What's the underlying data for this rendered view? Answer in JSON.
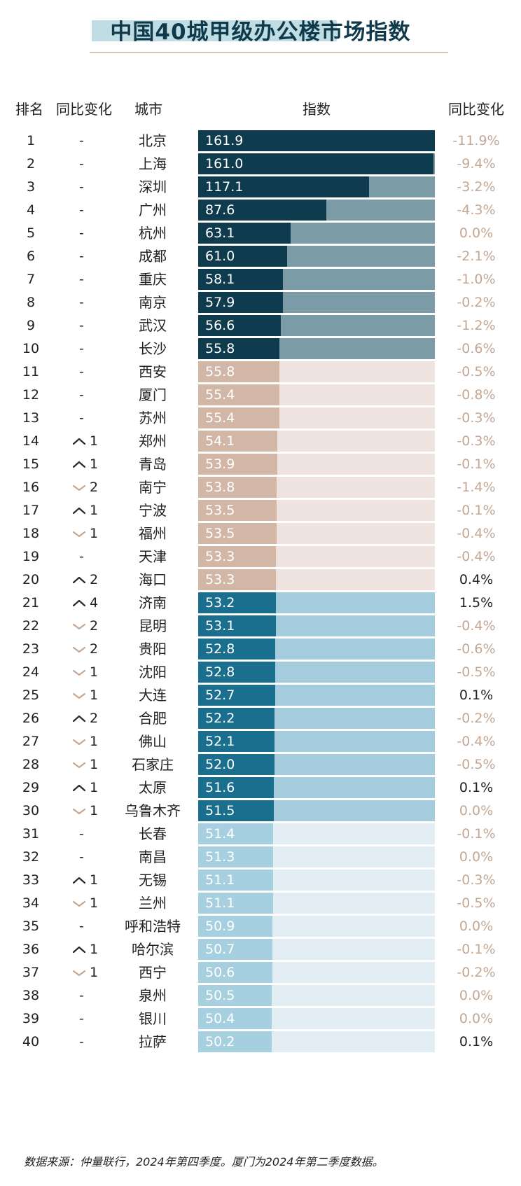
{
  "title": "中国40城甲级办公楼市场指数",
  "headers": {
    "rank": "排名",
    "change": "同比变化",
    "city": "城市",
    "index": "指数",
    "yoy": "同比变化"
  },
  "footer": "数据来源：仲量联行，2024年第四季度。厦门为2024年第二季度数据。",
  "colors": {
    "tier1_bar": "#0f3b4f",
    "tier1_track": "#7b9ba7",
    "tier2_bar": "#d2b6a6",
    "tier2_track": "#efe3df",
    "tier3_bar": "#1a6f8e",
    "tier3_track": "#a4ccdd",
    "tier4_bar": "#a6cfdf",
    "tier4_track": "#e2eef3",
    "yoy_negative": "#c4a793",
    "yoy_zero": "#c4a793",
    "yoy_positive": "#222222",
    "arrow_up": "#1f2a33",
    "arrow_down": "#c4a793"
  },
  "chart_data": {
    "type": "bar",
    "xlim": [
      0,
      161.9
    ],
    "rows": [
      {
        "rank": "1",
        "change_dir": "none",
        "change_num": "",
        "city": "北京",
        "value": 161.9,
        "value_label": "161.9",
        "yoy": "-11.9%",
        "tier": 1
      },
      {
        "rank": "2",
        "change_dir": "none",
        "change_num": "",
        "city": "上海",
        "value": 161.0,
        "value_label": "161.0",
        "yoy": "-9.4%",
        "tier": 1
      },
      {
        "rank": "3",
        "change_dir": "none",
        "change_num": "",
        "city": "深圳",
        "value": 117.1,
        "value_label": "117.1",
        "yoy": "-3.2%",
        "tier": 1
      },
      {
        "rank": "4",
        "change_dir": "none",
        "change_num": "",
        "city": "广州",
        "value": 87.6,
        "value_label": "87.6",
        "yoy": "-4.3%",
        "tier": 1
      },
      {
        "rank": "5",
        "change_dir": "none",
        "change_num": "",
        "city": "杭州",
        "value": 63.1,
        "value_label": "63.1",
        "yoy": "0.0%",
        "tier": 1
      },
      {
        "rank": "6",
        "change_dir": "none",
        "change_num": "",
        "city": "成都",
        "value": 61.0,
        "value_label": "61.0",
        "yoy": "-2.1%",
        "tier": 1
      },
      {
        "rank": "7",
        "change_dir": "none",
        "change_num": "",
        "city": "重庆",
        "value": 58.1,
        "value_label": "58.1",
        "yoy": "-1.0%",
        "tier": 1
      },
      {
        "rank": "8",
        "change_dir": "none",
        "change_num": "",
        "city": "南京",
        "value": 57.9,
        "value_label": "57.9",
        "yoy": "-0.2%",
        "tier": 1
      },
      {
        "rank": "9",
        "change_dir": "none",
        "change_num": "",
        "city": "武汉",
        "value": 56.6,
        "value_label": "56.6",
        "yoy": "-1.2%",
        "tier": 1
      },
      {
        "rank": "10",
        "change_dir": "none",
        "change_num": "",
        "city": "长沙",
        "value": 55.8,
        "value_label": "55.8",
        "yoy": "-0.6%",
        "tier": 1
      },
      {
        "rank": "11",
        "change_dir": "none",
        "change_num": "",
        "city": "西安",
        "value": 55.8,
        "value_label": "55.8",
        "yoy": "-0.5%",
        "tier": 2
      },
      {
        "rank": "12",
        "change_dir": "none",
        "change_num": "",
        "city": "厦门",
        "value": 55.4,
        "value_label": "55.4",
        "yoy": "-0.8%",
        "tier": 2
      },
      {
        "rank": "13",
        "change_dir": "none",
        "change_num": "",
        "city": "苏州",
        "value": 55.4,
        "value_label": "55.4",
        "yoy": "-0.3%",
        "tier": 2
      },
      {
        "rank": "14",
        "change_dir": "up",
        "change_num": "1",
        "city": "郑州",
        "value": 54.1,
        "value_label": "54.1",
        "yoy": "-0.3%",
        "tier": 2
      },
      {
        "rank": "15",
        "change_dir": "up",
        "change_num": "1",
        "city": "青岛",
        "value": 53.9,
        "value_label": "53.9",
        "yoy": "-0.1%",
        "tier": 2
      },
      {
        "rank": "16",
        "change_dir": "down",
        "change_num": "2",
        "city": "南宁",
        "value": 53.8,
        "value_label": "53.8",
        "yoy": "-1.4%",
        "tier": 2
      },
      {
        "rank": "17",
        "change_dir": "up",
        "change_num": "1",
        "city": "宁波",
        "value": 53.5,
        "value_label": "53.5",
        "yoy": "-0.1%",
        "tier": 2
      },
      {
        "rank": "18",
        "change_dir": "down",
        "change_num": "1",
        "city": "福州",
        "value": 53.5,
        "value_label": "53.5",
        "yoy": "-0.4%",
        "tier": 2
      },
      {
        "rank": "19",
        "change_dir": "none",
        "change_num": "",
        "city": "天津",
        "value": 53.3,
        "value_label": "53.3",
        "yoy": "-0.4%",
        "tier": 2
      },
      {
        "rank": "20",
        "change_dir": "up",
        "change_num": "2",
        "city": "海口",
        "value": 53.3,
        "value_label": "53.3",
        "yoy": "0.4%",
        "tier": 2
      },
      {
        "rank": "21",
        "change_dir": "up",
        "change_num": "4",
        "city": "济南",
        "value": 53.2,
        "value_label": "53.2",
        "yoy": "1.5%",
        "tier": 3
      },
      {
        "rank": "22",
        "change_dir": "down",
        "change_num": "2",
        "city": "昆明",
        "value": 53.1,
        "value_label": "53.1",
        "yoy": "-0.4%",
        "tier": 3
      },
      {
        "rank": "23",
        "change_dir": "down",
        "change_num": "2",
        "city": "贵阳",
        "value": 52.8,
        "value_label": "52.8",
        "yoy": "-0.6%",
        "tier": 3
      },
      {
        "rank": "24",
        "change_dir": "down",
        "change_num": "1",
        "city": "沈阳",
        "value": 52.8,
        "value_label": "52.8",
        "yoy": "-0.5%",
        "tier": 3
      },
      {
        "rank": "25",
        "change_dir": "down",
        "change_num": "1",
        "city": "大连",
        "value": 52.7,
        "value_label": "52.7",
        "yoy": "0.1%",
        "tier": 3
      },
      {
        "rank": "26",
        "change_dir": "up",
        "change_num": "2",
        "city": "合肥",
        "value": 52.2,
        "value_label": "52.2",
        "yoy": "-0.2%",
        "tier": 3
      },
      {
        "rank": "27",
        "change_dir": "down",
        "change_num": "1",
        "city": "佛山",
        "value": 52.1,
        "value_label": "52.1",
        "yoy": "-0.4%",
        "tier": 3
      },
      {
        "rank": "28",
        "change_dir": "down",
        "change_num": "1",
        "city": "石家庄",
        "value": 52.0,
        "value_label": "52.0",
        "yoy": "-0.5%",
        "tier": 3
      },
      {
        "rank": "29",
        "change_dir": "up",
        "change_num": "1",
        "city": "太原",
        "value": 51.6,
        "value_label": "51.6",
        "yoy": "0.1%",
        "tier": 3
      },
      {
        "rank": "30",
        "change_dir": "down",
        "change_num": "1",
        "city": "乌鲁木齐",
        "value": 51.5,
        "value_label": "51.5",
        "yoy": "0.0%",
        "tier": 3
      },
      {
        "rank": "31",
        "change_dir": "none",
        "change_num": "",
        "city": "长春",
        "value": 51.4,
        "value_label": "51.4",
        "yoy": "-0.1%",
        "tier": 4
      },
      {
        "rank": "32",
        "change_dir": "none",
        "change_num": "",
        "city": "南昌",
        "value": 51.3,
        "value_label": "51.3",
        "yoy": "0.0%",
        "tier": 4
      },
      {
        "rank": "33",
        "change_dir": "up",
        "change_num": "1",
        "city": "无锡",
        "value": 51.1,
        "value_label": "51.1",
        "yoy": "-0.3%",
        "tier": 4
      },
      {
        "rank": "34",
        "change_dir": "down",
        "change_num": "1",
        "city": "兰州",
        "value": 51.1,
        "value_label": "51.1",
        "yoy": "-0.5%",
        "tier": 4
      },
      {
        "rank": "35",
        "change_dir": "none",
        "change_num": "",
        "city": "呼和浩特",
        "value": 50.9,
        "value_label": "50.9",
        "yoy": "0.0%",
        "tier": 4
      },
      {
        "rank": "36",
        "change_dir": "up",
        "change_num": "1",
        "city": "哈尔滨",
        "value": 50.7,
        "value_label": "50.7",
        "yoy": "-0.1%",
        "tier": 4
      },
      {
        "rank": "37",
        "change_dir": "down",
        "change_num": "1",
        "city": "西宁",
        "value": 50.6,
        "value_label": "50.6",
        "yoy": "-0.2%",
        "tier": 4
      },
      {
        "rank": "38",
        "change_dir": "none",
        "change_num": "",
        "city": "泉州",
        "value": 50.5,
        "value_label": "50.5",
        "yoy": "0.0%",
        "tier": 4
      },
      {
        "rank": "39",
        "change_dir": "none",
        "change_num": "",
        "city": "银川",
        "value": 50.4,
        "value_label": "50.4",
        "yoy": "0.0%",
        "tier": 4
      },
      {
        "rank": "40",
        "change_dir": "none",
        "change_num": "",
        "city": "拉萨",
        "value": 50.2,
        "value_label": "50.2",
        "yoy": "0.1%",
        "tier": 4
      }
    ]
  }
}
